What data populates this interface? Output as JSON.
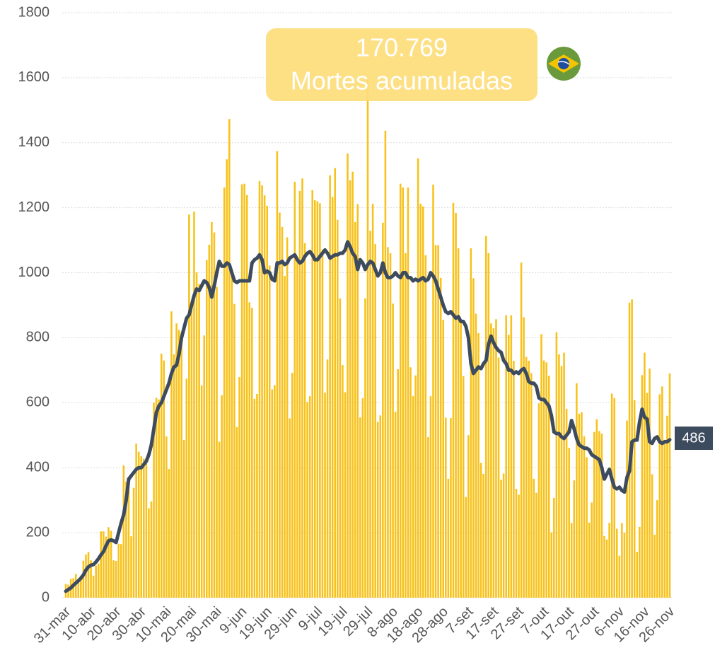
{
  "chart_data": {
    "type": "bar",
    "annotation": {
      "value_text": "170.769",
      "label": "Mortes acumuladas"
    },
    "ylim": [
      0,
      1800
    ],
    "yticks": [
      0,
      200,
      400,
      600,
      800,
      1000,
      1200,
      1400,
      1600,
      1800
    ],
    "grid": true,
    "categories": [
      "31-mar",
      null,
      null,
      null,
      null,
      null,
      null,
      null,
      null,
      null,
      "10-abr",
      null,
      null,
      null,
      null,
      null,
      null,
      null,
      null,
      null,
      "20-abr",
      null,
      null,
      null,
      null,
      null,
      null,
      null,
      null,
      null,
      "30-abr",
      null,
      null,
      null,
      null,
      null,
      null,
      null,
      null,
      null,
      "10-mai",
      null,
      null,
      null,
      null,
      null,
      null,
      null,
      null,
      null,
      "20-mai",
      null,
      null,
      null,
      null,
      null,
      null,
      null,
      null,
      null,
      "30-mai",
      null,
      null,
      null,
      null,
      null,
      null,
      null,
      null,
      null,
      "9-jun",
      null,
      null,
      null,
      null,
      null,
      null,
      null,
      null,
      null,
      "19-jun",
      null,
      null,
      null,
      null,
      null,
      null,
      null,
      null,
      null,
      "29-jun",
      null,
      null,
      null,
      null,
      null,
      null,
      null,
      null,
      null,
      "9-jul",
      null,
      null,
      null,
      null,
      null,
      null,
      null,
      null,
      null,
      "19-jul",
      null,
      null,
      null,
      null,
      null,
      null,
      null,
      null,
      null,
      "29-jul",
      null,
      null,
      null,
      null,
      null,
      null,
      null,
      null,
      null,
      "8-ago",
      null,
      null,
      null,
      null,
      null,
      null,
      null,
      null,
      null,
      "18-ago",
      null,
      null,
      null,
      null,
      null,
      null,
      null,
      null,
      null,
      "28-ago",
      null,
      null,
      null,
      null,
      null,
      null,
      null,
      null,
      null,
      "7-set",
      null,
      null,
      null,
      null,
      null,
      null,
      null,
      null,
      null,
      "17-set",
      null,
      null,
      null,
      null,
      null,
      null,
      null,
      null,
      null,
      "27-set",
      null,
      null,
      null,
      null,
      null,
      null,
      null,
      null,
      null,
      "7-out",
      null,
      null,
      null,
      null,
      null,
      null,
      null,
      null,
      null,
      "17-out",
      null,
      null,
      null,
      null,
      null,
      null,
      null,
      null,
      null,
      "27-out",
      null,
      null,
      null,
      null,
      null,
      null,
      null,
      null,
      null,
      "6-nov",
      null,
      null,
      null,
      null,
      null,
      null,
      null,
      null,
      null,
      "16-nov",
      null,
      null,
      null,
      null,
      null,
      null,
      null,
      null,
      null,
      "26-nov"
    ],
    "series": [
      {
        "type": "bar",
        "color": "#f7c21b",
        "values": [
          42,
          40,
          58,
          60,
          73,
          54,
          67,
          114,
          133,
          141,
          115,
          68,
          99,
          105,
          204,
          204,
          188,
          217,
          206,
          115,
          113,
          166,
          165,
          407,
          357,
          346,
          189,
          338,
          474,
          449,
          435,
          428,
          421,
          275,
          296,
          600,
          615,
          610,
          751,
          730,
          496,
          396,
          881,
          749,
          844,
          824,
          816,
          485,
          674,
          1179,
          888,
          1188,
          1001,
          965,
          653,
          807,
          1039,
          1086,
          1156,
          1124,
          956,
          480,
          623,
          1262,
          1349,
          1473,
          1005,
          904,
          525,
          679,
          1272,
          1274,
          1239,
          909,
          892,
          612,
          627,
          1282,
          1269,
          1238,
          1206,
          1022,
          641,
          654,
          1374,
          1185,
          1141,
          990,
          1109,
          552,
          692,
          1280,
          1038,
          1252,
          1290,
          1091,
          602,
          620,
          1254,
          1223,
          1220,
          1214,
          1071,
          631,
          733,
          1300,
          1233,
          1322,
          1163,
          921,
          716,
          632,
          1367,
          1284,
          1311,
          1156,
          1211,
          555,
          614,
          921,
          1595,
          1129,
          1212,
          1088,
          541,
          561,
          1154,
          1437,
          1079,
          1060,
          905,
          572,
          703,
          1274,
          1262,
          1060,
          1262,
          709,
          620,
          684,
          1352,
          1212,
          1204,
          1054,
          494,
          620,
          1271,
          1085,
          1085,
          984,
          855,
          554,
          366,
          553,
          1215,
          1184,
          1075,
          855,
          682,
          310,
          500,
          1075,
          983,
          874,
          814,
          415,
          381,
          1113,
          1060,
          844,
          829,
          857,
          739,
          363,
          382,
          869,
          809,
          869,
          729,
          335,
          317,
          1031,
          863,
          741,
          729,
          691,
          366,
          323,
          598,
          811,
          730,
          724,
          683,
          201,
          307,
          817,
          749,
          713,
          754,
          581,
          461,
          230,
          361,
          660,
          566,
          571,
          497,
          432,
          231,
          293,
          510,
          549,
          513,
          505,
          190,
          179,
          230,
          628,
          614,
          212,
          129,
          230,
          200,
          545,
          908,
          918,
          608,
          141,
          218,
          685,
          754,
          630,
          705,
          380,
          194,
          300,
          626,
          650,
          486,
          560,
          690
        ]
      },
      {
        "type": "line",
        "color": "#3d4b5e",
        "values": [
          20,
          25,
          30,
          38,
          45,
          52,
          60,
          70,
          85,
          95,
          100,
          102,
          110,
          120,
          132,
          142,
          160,
          175,
          178,
          175,
          170,
          200,
          230,
          255,
          300,
          365,
          375,
          385,
          395,
          400,
          400,
          410,
          420,
          440,
          470,
          520,
          570,
          590,
          600,
          620,
          640,
          660,
          690,
          710,
          715,
          750,
          800,
          830,
          860,
          870,
          900,
          930,
          950,
          945,
          960,
          975,
          970,
          955,
          925,
          960,
          1000,
          1035,
          1020,
          1020,
          1030,
          1025,
          1000,
          975,
          970,
          975,
          975,
          975,
          975,
          975,
          1030,
          1040,
          1045,
          1055,
          1040,
          1000,
          1005,
          1000,
          980,
          975,
          1030,
          1030,
          1035,
          1025,
          1030,
          1045,
          1050,
          1055,
          1040,
          1030,
          1035,
          1050,
          1060,
          1065,
          1055,
          1040,
          1040,
          1050,
          1060,
          1070,
          1060,
          1045,
          1050,
          1055,
          1055,
          1060,
          1060,
          1070,
          1095,
          1080,
          1060,
          1050,
          1010,
          1040,
          1030,
          1010,
          1025,
          1035,
          1030,
          1010,
          990,
          1000,
          1030,
          1000,
          985,
          985,
          990,
          1000,
          990,
          985,
          1000,
          1000,
          985,
          985,
          975,
          980,
          975,
          980,
          985,
          975,
          980,
          1000,
          990,
          975,
          950,
          925,
          900,
          880,
          875,
          880,
          870,
          860,
          865,
          850,
          850,
          835,
          800,
          720,
          690,
          700,
          710,
          705,
          720,
          730,
          780,
          805,
          785,
          770,
          760,
          755,
          730,
          720,
          700,
          700,
          690,
          695,
          690,
          700,
          705,
          690,
          665,
          660,
          660,
          650,
          615,
          610,
          610,
          600,
          590,
          560,
          510,
          505,
          505,
          495,
          490,
          500,
          510,
          545,
          520,
          490,
          470,
          465,
          460,
          460,
          455,
          440,
          435,
          430,
          425,
          400,
          365,
          380,
          395,
          365,
          340,
          335,
          340,
          330,
          325,
          370,
          390,
          480,
          485,
          485,
          540,
          580,
          555,
          550,
          480,
          475,
          490,
          495,
          480,
          475,
          480,
          480,
          486
        ]
      }
    ]
  }
}
